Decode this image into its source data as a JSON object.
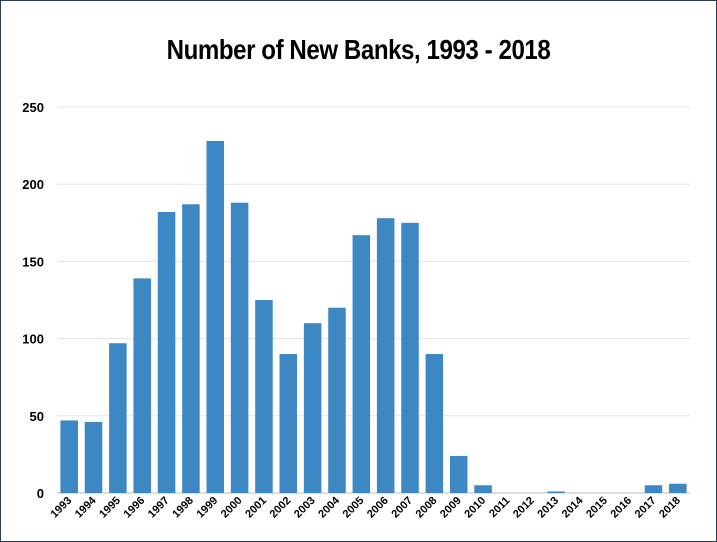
{
  "chart_data": {
    "type": "bar",
    "title": "Number of New Banks, 1993 - 2018",
    "xlabel": "",
    "ylabel": "",
    "categories": [
      "1993",
      "1994",
      "1995",
      "1996",
      "1997",
      "1998",
      "1999",
      "2000",
      "2001",
      "2002",
      "2003",
      "2004",
      "2005",
      "2006",
      "2007",
      "2008",
      "2009",
      "2010",
      "2011",
      "2012",
      "2013",
      "2014",
      "2015",
      "2016",
      "2017",
      "2018"
    ],
    "values": [
      47,
      46,
      97,
      139,
      182,
      187,
      228,
      188,
      125,
      90,
      110,
      120,
      167,
      178,
      175,
      90,
      24,
      5,
      0,
      0,
      1,
      0,
      0,
      0,
      5,
      6
    ],
    "ylim": [
      0,
      250
    ],
    "yticks": [
      0,
      50,
      100,
      150,
      200,
      250
    ],
    "grid": true,
    "legend": "none",
    "bar_color": "#3d88c2"
  }
}
